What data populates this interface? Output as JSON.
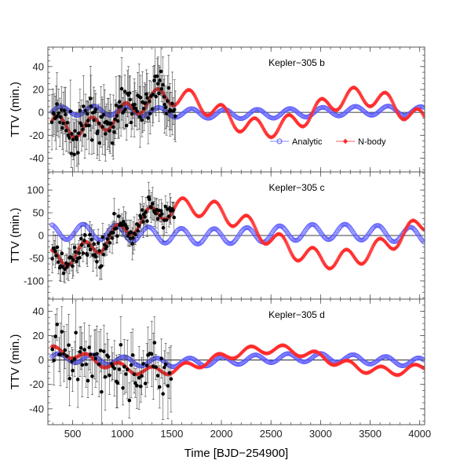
{
  "chart_data": {
    "type": "scatter",
    "xlabel": "Time [BJD−254900]",
    "xlim": [
      250,
      4050
    ],
    "xticks": [
      500,
      1000,
      1500,
      2000,
      2500,
      3000,
      3500,
      4000
    ],
    "ylabel": "TTV (min.)",
    "legend": {
      "placement": "inside-right of top panel",
      "entries": [
        {
          "name": "Analytic",
          "color": "#5b5bff",
          "marker": "open-circle"
        },
        {
          "name": "N-body",
          "color": "#ff2a2a",
          "marker": "filled-diamond"
        }
      ]
    },
    "colors": {
      "analytic": "#5b5bff",
      "nbody": "#ff2a2a",
      "observed": "#000000",
      "frame": "#555555"
    },
    "panels": [
      {
        "title": "Kepler−305 b",
        "ylim": [
          -52,
          57
        ],
        "yticks": [
          -40,
          -20,
          0,
          20,
          40
        ],
        "observed_range": [
          290,
          1540
        ],
        "analytic": {
          "offset": 0,
          "components": [
            [
              4,
              330,
              0.6
            ],
            [
              1.5,
              2900,
              0.0
            ]
          ]
        },
        "nbody": {
          "offset": 0,
          "components": [
            [
              8,
              330,
              1.0
            ],
            [
              14,
              1900,
              2.9
            ]
          ]
        },
        "observed_points": 130,
        "observed_scatter": 12,
        "observed_error": 20
      },
      {
        "title": "Kepler−305 c",
        "ylim": [
          -140,
          140
        ],
        "yticks": [
          -100,
          -50,
          0,
          50,
          100
        ],
        "observed_range": [
          290,
          1530
        ],
        "analytic": {
          "offset": 3,
          "components": [
            [
              17,
              330,
              2.6
            ],
            [
              5,
              2600,
              0.3
            ]
          ]
        },
        "nbody": {
          "offset": 5,
          "components": [
            [
              20,
              330,
              2.4
            ],
            [
              58,
              2900,
              4.2
            ]
          ]
        },
        "observed_points": 115,
        "observed_scatter": 18,
        "observed_error": 25
      },
      {
        "title": "Kepler−305 d",
        "ylim": [
          -53,
          50
        ],
        "yticks": [
          -40,
          -20,
          0,
          20,
          40
        ],
        "observed_range": [
          290,
          1500
        ],
        "analytic": {
          "offset": 0,
          "components": [
            [
              3.5,
              330,
              1.0
            ],
            [
              2,
              2700,
              1.2
            ]
          ]
        },
        "nbody": {
          "offset": 0,
          "components": [
            [
              3.5,
              330,
              1.9
            ],
            [
              9,
              2400,
              1.3
            ]
          ]
        },
        "observed_points": 75,
        "observed_scatter": 15,
        "observed_error": 19
      }
    ]
  }
}
